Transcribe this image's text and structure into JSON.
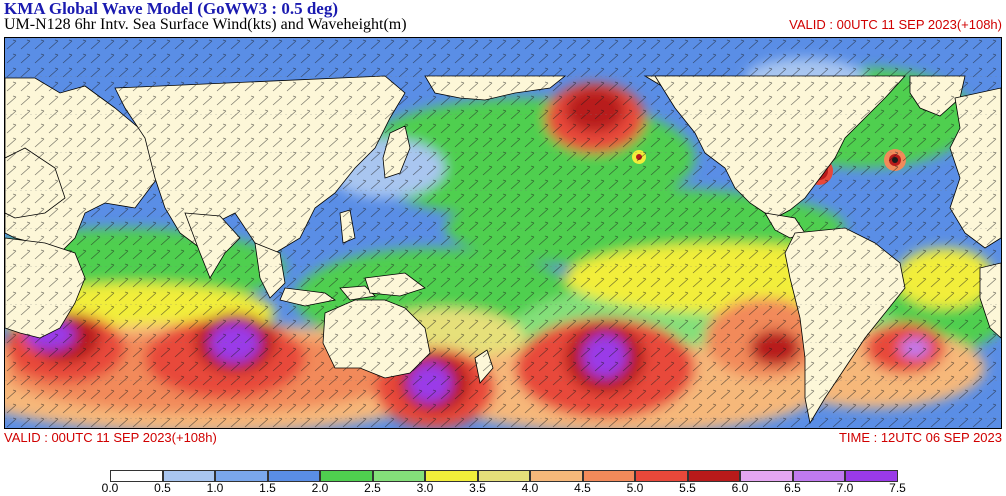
{
  "header": {
    "title": "KMA  Global Wave Model (GoWW3 : 0.5 deg)",
    "subtitle": "UM-N128  6hr Intv. Sea Surface Wind(kts) and Waveheight(m)",
    "valid_top": "VALID : 00UTC 11 SEP 2023(+108h)"
  },
  "footer": {
    "valid": "VALID : 00UTC 11 SEP 2023(+108h)",
    "time": "TIME : 12UTC 06 SEP 2023"
  },
  "colors": {
    "land": "#fdf7d8",
    "ocean_base": "#5a8ee6"
  },
  "colorbar": {
    "ticks": [
      "0.0",
      "0.5",
      "1.0",
      "1.5",
      "2.0",
      "2.5",
      "3.0",
      "3.5",
      "4.0",
      "4.5",
      "5.0",
      "5.5",
      "6.0",
      "6.5",
      "7.0",
      "7.5"
    ],
    "colors": [
      "#ffffff",
      "#a9c6f0",
      "#7aa7ec",
      "#5a8ee6",
      "#4fcf4f",
      "#84e07a",
      "#f2ee3a",
      "#e6e07a",
      "#f6b87a",
      "#f28a5a",
      "#e8483a",
      "#b81a1a",
      "#e4a6f2",
      "#c07af0",
      "#9a3ae8"
    ]
  },
  "features": [
    {
      "name": "north-pacific-low",
      "value": 6.0
    },
    {
      "name": "hurricane-atlantic-west",
      "value": 7.0
    },
    {
      "name": "hurricane-atlantic-east",
      "value": 6.5
    },
    {
      "name": "indian-ocean-storm",
      "value": 7.5
    },
    {
      "name": "south-indian-storm",
      "value": 7.5
    },
    {
      "name": "tasman-storm",
      "value": 7.5
    },
    {
      "name": "south-pacific-storm",
      "value": 7.5
    },
    {
      "name": "east-south-pacific-storm",
      "value": 6.5
    },
    {
      "name": "south-atlantic-storm",
      "value": 6.5
    }
  ]
}
